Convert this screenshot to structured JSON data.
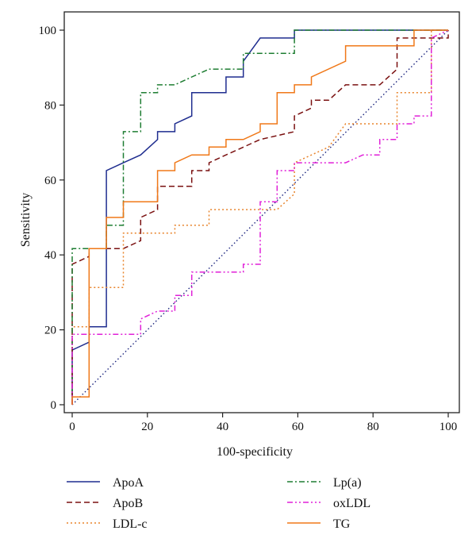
{
  "chart_data": {
    "type": "line",
    "title": "",
    "xlabel": "100-specificity",
    "ylabel": "Sensitivity",
    "xlim": [
      0,
      100
    ],
    "ylim": [
      0,
      100
    ],
    "xticks": [
      "0",
      "20",
      "40",
      "60",
      "80",
      "100"
    ],
    "yticks": [
      "0",
      "20",
      "40",
      "60",
      "80",
      "100"
    ],
    "grid": false,
    "legend_position": "bottom",
    "reference_line": {
      "style": "dotted",
      "color": "#1a237e",
      "from": [
        0,
        0
      ],
      "to": [
        100,
        100
      ]
    },
    "series": [
      {
        "name": "ApoA",
        "color": "#1f2d8f",
        "dash": "",
        "points": [
          [
            0,
            0
          ],
          [
            0,
            14.6
          ],
          [
            4.5,
            16.7
          ],
          [
            4.5,
            20.8
          ],
          [
            9.1,
            20.8
          ],
          [
            9.1,
            62.5
          ],
          [
            13.6,
            64.6
          ],
          [
            18.2,
            66.7
          ],
          [
            22.7,
            70.8
          ],
          [
            22.7,
            72.9
          ],
          [
            27.3,
            72.9
          ],
          [
            27.3,
            75
          ],
          [
            31.8,
            77.1
          ],
          [
            31.8,
            83.3
          ],
          [
            40.9,
            83.3
          ],
          [
            40.9,
            87.5
          ],
          [
            45.5,
            87.5
          ],
          [
            45.5,
            91.7
          ],
          [
            50,
            97.9
          ],
          [
            59.1,
            97.9
          ],
          [
            59.1,
            100
          ],
          [
            100,
            100
          ]
        ]
      },
      {
        "name": "ApoB",
        "color": "#7a1010",
        "dash": "7,4",
        "points": [
          [
            0,
            0
          ],
          [
            0,
            37.5
          ],
          [
            4.5,
            39.6
          ],
          [
            4.5,
            41.7
          ],
          [
            13.6,
            41.7
          ],
          [
            18.2,
            43.8
          ],
          [
            18.2,
            50
          ],
          [
            22.7,
            52.1
          ],
          [
            22.7,
            58.3
          ],
          [
            31.8,
            58.3
          ],
          [
            31.8,
            62.5
          ],
          [
            36.4,
            62.5
          ],
          [
            36.4,
            64.6
          ],
          [
            40.9,
            66.7
          ],
          [
            50,
            70.8
          ],
          [
            59.1,
            72.9
          ],
          [
            59.1,
            77.1
          ],
          [
            63.6,
            79.2
          ],
          [
            63.6,
            81.3
          ],
          [
            68.2,
            81.3
          ],
          [
            72.7,
            85.4
          ],
          [
            81.8,
            85.4
          ],
          [
            86.4,
            89.6
          ],
          [
            86.4,
            97.9
          ],
          [
            100,
            97.9
          ],
          [
            100,
            100
          ]
        ]
      },
      {
        "name": "LDL-c",
        "color": "#e8832a",
        "dash": "2,3",
        "points": [
          [
            0,
            0
          ],
          [
            0,
            20.8
          ],
          [
            4.5,
            20.8
          ],
          [
            4.5,
            31.3
          ],
          [
            13.6,
            31.3
          ],
          [
            13.6,
            45.8
          ],
          [
            27.3,
            45.8
          ],
          [
            27.3,
            47.9
          ],
          [
            36.4,
            47.9
          ],
          [
            36.4,
            52.1
          ],
          [
            54.5,
            52.1
          ],
          [
            59.1,
            56.3
          ],
          [
            59.1,
            64.6
          ],
          [
            68.2,
            68.8
          ],
          [
            72.7,
            75
          ],
          [
            86.4,
            75
          ],
          [
            86.4,
            83.3
          ],
          [
            95.5,
            83.3
          ],
          [
            95.5,
            100
          ],
          [
            100,
            100
          ]
        ]
      },
      {
        "name": "Lp(a)",
        "color": "#1e7d32",
        "dash": "7,3,2,3",
        "points": [
          [
            0,
            0
          ],
          [
            0,
            41.7
          ],
          [
            4.5,
            41.7
          ],
          [
            9.1,
            41.7
          ],
          [
            9.1,
            47.9
          ],
          [
            13.6,
            47.9
          ],
          [
            13.6,
            72.9
          ],
          [
            18.2,
            72.9
          ],
          [
            18.2,
            83.3
          ],
          [
            22.7,
            83.3
          ],
          [
            22.7,
            85.4
          ],
          [
            27.3,
            85.4
          ],
          [
            31.8,
            87.5
          ],
          [
            36.4,
            89.6
          ],
          [
            45.5,
            89.6
          ],
          [
            45.5,
            93.8
          ],
          [
            59.1,
            93.8
          ],
          [
            59.1,
            100
          ],
          [
            100,
            100
          ]
        ]
      },
      {
        "name": "oxLDL",
        "color": "#e020d8",
        "dash": "7,3,2,3,2,3",
        "points": [
          [
            0,
            0
          ],
          [
            0,
            18.8
          ],
          [
            18.2,
            18.8
          ],
          [
            18.2,
            22.9
          ],
          [
            22.7,
            25
          ],
          [
            27.3,
            25
          ],
          [
            27.3,
            29.2
          ],
          [
            31.8,
            29.2
          ],
          [
            31.8,
            35.4
          ],
          [
            45.5,
            35.4
          ],
          [
            45.5,
            37.5
          ],
          [
            50,
            37.5
          ],
          [
            50,
            54.2
          ],
          [
            54.5,
            54.2
          ],
          [
            54.5,
            62.5
          ],
          [
            59.1,
            62.5
          ],
          [
            59.1,
            64.6
          ],
          [
            72.7,
            64.6
          ],
          [
            77.3,
            66.7
          ],
          [
            81.8,
            66.7
          ],
          [
            81.8,
            70.8
          ],
          [
            86.4,
            70.8
          ],
          [
            86.4,
            75
          ],
          [
            90.9,
            75
          ],
          [
            90.9,
            77.1
          ],
          [
            95.5,
            77.1
          ],
          [
            95.5,
            97.9
          ],
          [
            100,
            100
          ]
        ]
      },
      {
        "name": "TG",
        "color": "#f07818",
        "dash": "",
        "points": [
          [
            0,
            0
          ],
          [
            0,
            2.1
          ],
          [
            4.5,
            2.1
          ],
          [
            4.5,
            41.7
          ],
          [
            9.1,
            41.7
          ],
          [
            9.1,
            50
          ],
          [
            13.6,
            50
          ],
          [
            13.6,
            54.2
          ],
          [
            22.7,
            54.2
          ],
          [
            22.7,
            62.5
          ],
          [
            27.3,
            62.5
          ],
          [
            27.3,
            64.6
          ],
          [
            31.8,
            66.7
          ],
          [
            36.4,
            66.7
          ],
          [
            36.4,
            68.8
          ],
          [
            40.9,
            68.8
          ],
          [
            40.9,
            70.8
          ],
          [
            45.5,
            70.8
          ],
          [
            50,
            72.9
          ],
          [
            50,
            75
          ],
          [
            54.5,
            75
          ],
          [
            54.5,
            83.3
          ],
          [
            59.1,
            83.3
          ],
          [
            59.1,
            85.4
          ],
          [
            63.6,
            85.4
          ],
          [
            63.6,
            87.5
          ],
          [
            72.7,
            91.7
          ],
          [
            72.7,
            95.8
          ],
          [
            90.9,
            95.8
          ],
          [
            90.9,
            100
          ],
          [
            100,
            100
          ]
        ]
      }
    ]
  }
}
